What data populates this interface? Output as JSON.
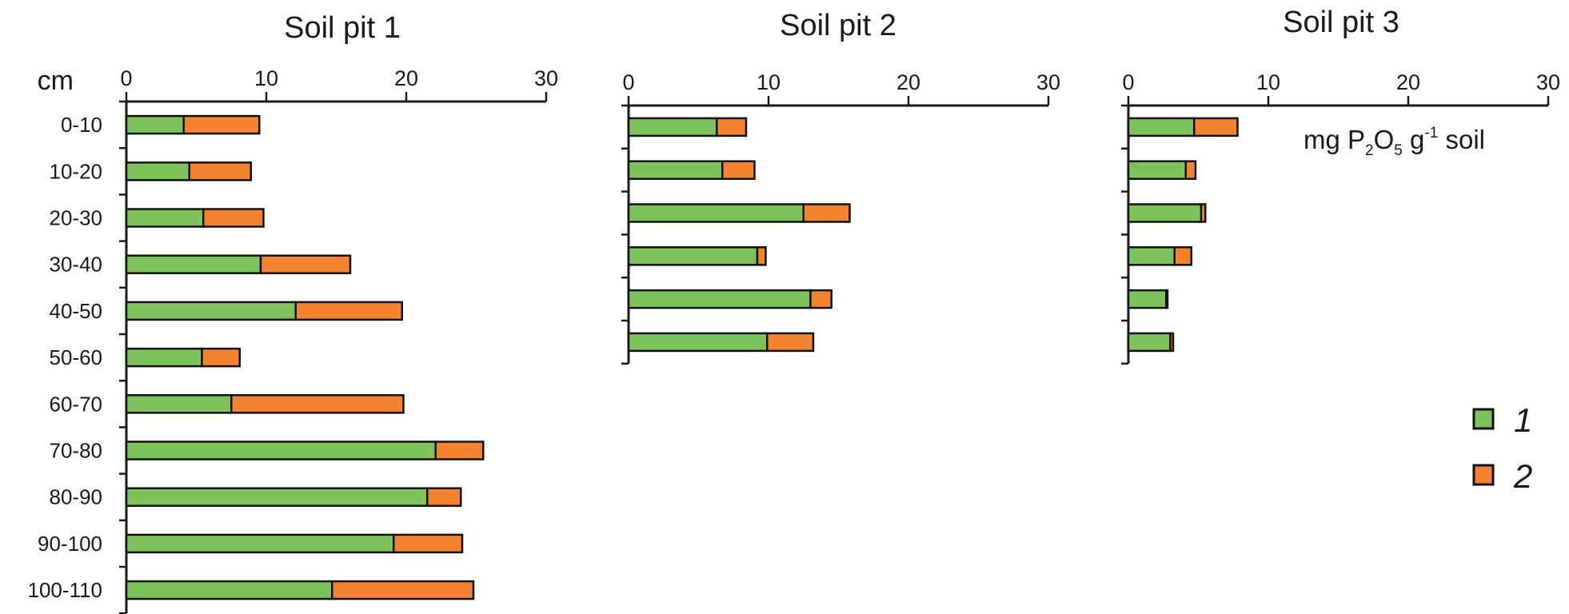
{
  "chart_data": {
    "type": "bar",
    "orientation": "horizontal",
    "stacked": true,
    "y_axis_title": "cm",
    "unit_label": {
      "base": "mg P",
      "sub1": "2",
      "mid": "O",
      "sub2": "5",
      "rest": " g",
      "sup": "-1",
      "tail": " soil"
    },
    "xlim": [
      0,
      30
    ],
    "xticks": [
      0,
      10,
      20,
      30
    ],
    "grid": false,
    "legend_position": "right",
    "series": [
      {
        "name": "1",
        "color": "#7dc25a"
      },
      {
        "name": "2",
        "color": "#f3832f"
      }
    ],
    "panels": [
      {
        "title": "Soil pit 1",
        "categories": [
          "0-10",
          "10-20",
          "20-30",
          "30-40",
          "40-50",
          "50-60",
          "60-70",
          "70-80",
          "80-90",
          "90-100",
          "100-110"
        ],
        "values": {
          "1": [
            4.1,
            4.5,
            5.5,
            9.6,
            12.1,
            5.4,
            7.5,
            22.1,
            21.5,
            19.1,
            14.7
          ],
          "2": [
            5.4,
            4.4,
            4.3,
            6.4,
            7.6,
            2.7,
            12.3,
            3.4,
            2.4,
            4.9,
            10.1
          ]
        }
      },
      {
        "title": "Soil pit 2",
        "categories": [
          "",
          "",
          "",
          "",
          "",
          ""
        ],
        "values": {
          "1": [
            6.3,
            6.7,
            12.5,
            9.2,
            13.0,
            9.9
          ],
          "2": [
            2.1,
            2.3,
            3.3,
            0.6,
            1.5,
            3.3
          ]
        }
      },
      {
        "title": "Soil pit 3",
        "categories": [
          "",
          "",
          "",
          "",
          "",
          ""
        ],
        "values": {
          "1": [
            4.7,
            4.1,
            5.2,
            3.3,
            2.7,
            3.0
          ],
          "2": [
            3.1,
            0.7,
            0.3,
            1.2,
            0.1,
            0.2
          ]
        }
      }
    ]
  }
}
